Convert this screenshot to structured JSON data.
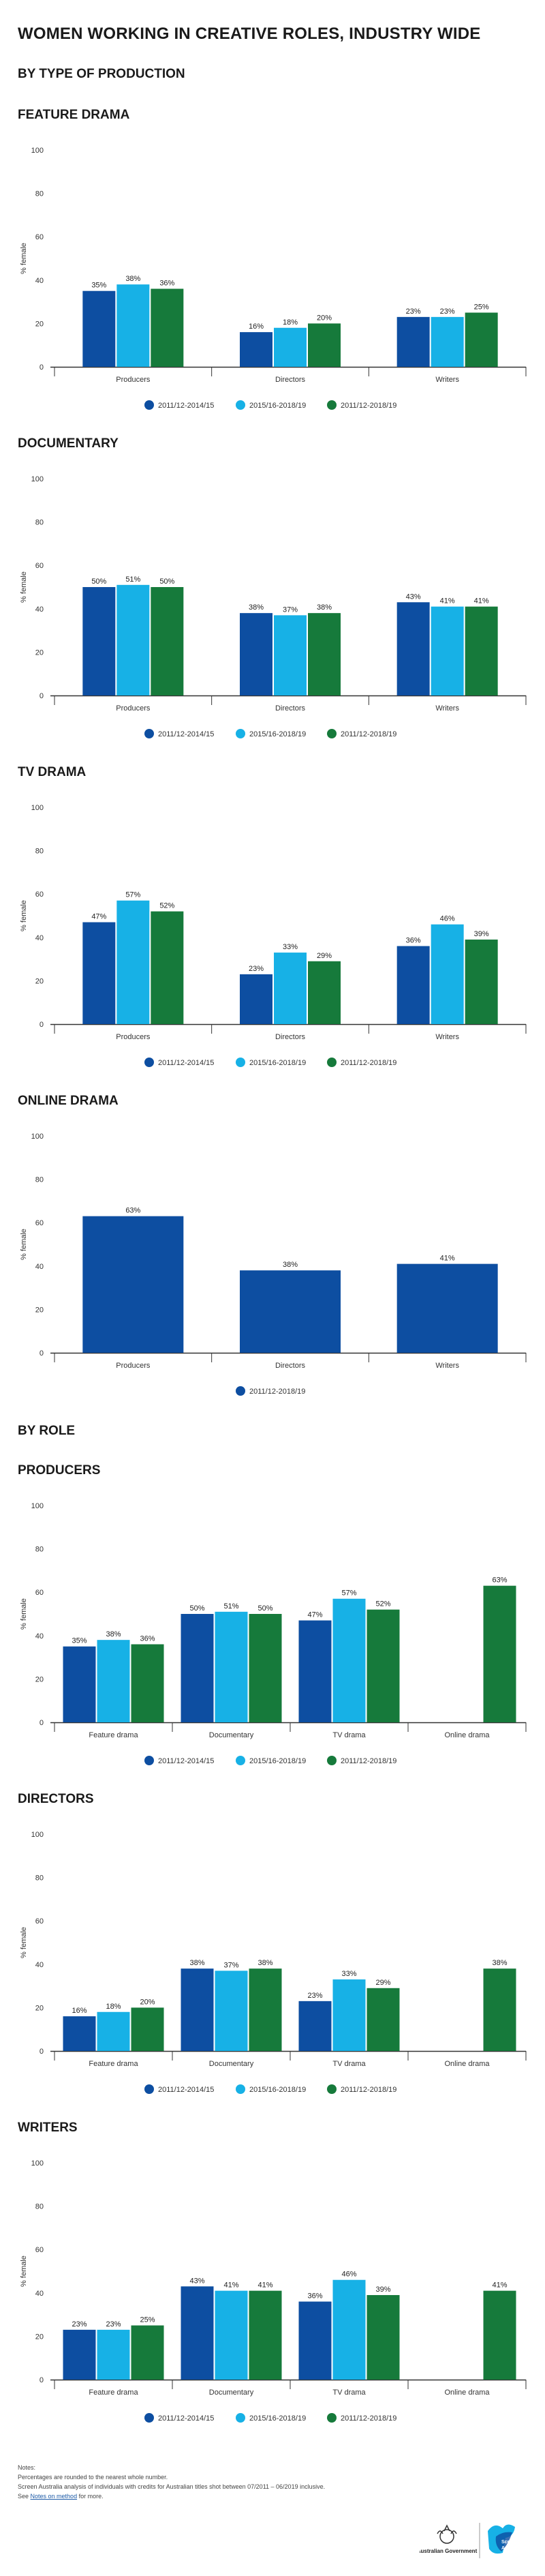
{
  "page_title": "WOMEN WORKING IN CREATIVE ROLES, INDUSTRY WIDE",
  "section_type": "BY TYPE OF PRODUCTION",
  "section_role": "BY ROLE",
  "colors": {
    "series1": "#0d4ea1",
    "series2": "#17b1e6",
    "series3": "#167a3b",
    "axis": "#333333",
    "grid": "#dddddd"
  },
  "chart_data": [
    {
      "id": "feature-drama",
      "type": "bar",
      "title": "FEATURE DRAMA",
      "ylabel": "% female",
      "ylim": [
        0,
        100
      ],
      "yticks": [
        0,
        20,
        40,
        60,
        80,
        100
      ],
      "categories": [
        "Producers",
        "Directors",
        "Writers"
      ],
      "series": [
        {
          "name": "2011/12-2014/15",
          "values": [
            35,
            16,
            23
          ]
        },
        {
          "name": "2015/16-2018/19",
          "values": [
            38,
            18,
            23
          ]
        },
        {
          "name": "2011/12-2018/19",
          "values": [
            36,
            20,
            25
          ]
        }
      ]
    },
    {
      "id": "documentary",
      "type": "bar",
      "title": "DOCUMENTARY",
      "ylabel": "% female",
      "ylim": [
        0,
        100
      ],
      "yticks": [
        0,
        20,
        40,
        60,
        80,
        100
      ],
      "categories": [
        "Producers",
        "Directors",
        "Writers"
      ],
      "series": [
        {
          "name": "2011/12-2014/15",
          "values": [
            50,
            38,
            43
          ]
        },
        {
          "name": "2015/16-2018/19",
          "values": [
            51,
            37,
            41
          ]
        },
        {
          "name": "2011/12-2018/19",
          "values": [
            50,
            38,
            41
          ]
        }
      ]
    },
    {
      "id": "tv-drama",
      "type": "bar",
      "title": "TV DRAMA",
      "ylabel": "% female",
      "ylim": [
        0,
        100
      ],
      "yticks": [
        0,
        20,
        40,
        60,
        80,
        100
      ],
      "categories": [
        "Producers",
        "Directors",
        "Writers"
      ],
      "series": [
        {
          "name": "2011/12-2014/15",
          "values": [
            47,
            23,
            36
          ]
        },
        {
          "name": "2015/16-2018/19",
          "values": [
            57,
            33,
            46
          ]
        },
        {
          "name": "2011/12-2018/19",
          "values": [
            52,
            29,
            39
          ]
        }
      ]
    },
    {
      "id": "online-drama",
      "type": "bar",
      "title": "ONLINE DRAMA",
      "ylabel": "% female",
      "ylim": [
        0,
        100
      ],
      "yticks": [
        0,
        20,
        40,
        60,
        80,
        100
      ],
      "categories": [
        "Producers",
        "Directors",
        "Writers"
      ],
      "series": [
        {
          "name": "2011/12-2018/19",
          "values": [
            63,
            38,
            41
          ],
          "color_key": "series1"
        }
      ]
    },
    {
      "id": "producers",
      "type": "bar",
      "title": "PRODUCERS",
      "ylabel": "% female",
      "ylim": [
        0,
        100
      ],
      "yticks": [
        0,
        20,
        40,
        60,
        80,
        100
      ],
      "categories": [
        "Feature drama",
        "Documentary",
        "TV drama",
        "Online drama"
      ],
      "series": [
        {
          "name": "2011/12-2014/15",
          "values": [
            35,
            50,
            47,
            null
          ]
        },
        {
          "name": "2015/16-2018/19",
          "values": [
            38,
            51,
            57,
            null
          ]
        },
        {
          "name": "2011/12-2018/19",
          "values": [
            36,
            50,
            52,
            63
          ]
        }
      ]
    },
    {
      "id": "directors",
      "type": "bar",
      "title": "DIRECTORS",
      "ylabel": "% female",
      "ylim": [
        0,
        100
      ],
      "yticks": [
        0,
        20,
        40,
        60,
        80,
        100
      ],
      "categories": [
        "Feature drama",
        "Documentary",
        "TV drama",
        "Online drama"
      ],
      "series": [
        {
          "name": "2011/12-2014/15",
          "values": [
            16,
            38,
            23,
            null
          ]
        },
        {
          "name": "2015/16-2018/19",
          "values": [
            18,
            37,
            33,
            null
          ]
        },
        {
          "name": "2011/12-2018/19",
          "values": [
            20,
            38,
            29,
            38
          ]
        }
      ]
    },
    {
      "id": "writers",
      "type": "bar",
      "title": "WRITERS",
      "ylabel": "% female",
      "ylim": [
        0,
        100
      ],
      "yticks": [
        0,
        20,
        40,
        60,
        80,
        100
      ],
      "categories": [
        "Feature drama",
        "Documentary",
        "TV drama",
        "Online drama"
      ],
      "series": [
        {
          "name": "2011/12-2014/15",
          "values": [
            23,
            43,
            36,
            null
          ]
        },
        {
          "name": "2015/16-2018/19",
          "values": [
            23,
            41,
            46,
            null
          ]
        },
        {
          "name": "2011/12-2018/19",
          "values": [
            25,
            41,
            39,
            41
          ]
        }
      ]
    }
  ],
  "notes": {
    "heading": "Notes:",
    "line1": "Percentages are rounded to the nearest whole number.",
    "line2": "Screen Australia analysis of individuals with credits for Australian titles shot between 07/2011 – 06/2019 inclusive.",
    "line3_pre": "See",
    "line3_link": "Notes on method",
    "line3_post": "for more."
  },
  "logos": {
    "gov_line1": "Australian Government",
    "brand_line1": "Screen",
    "brand_line2": "Australia"
  }
}
